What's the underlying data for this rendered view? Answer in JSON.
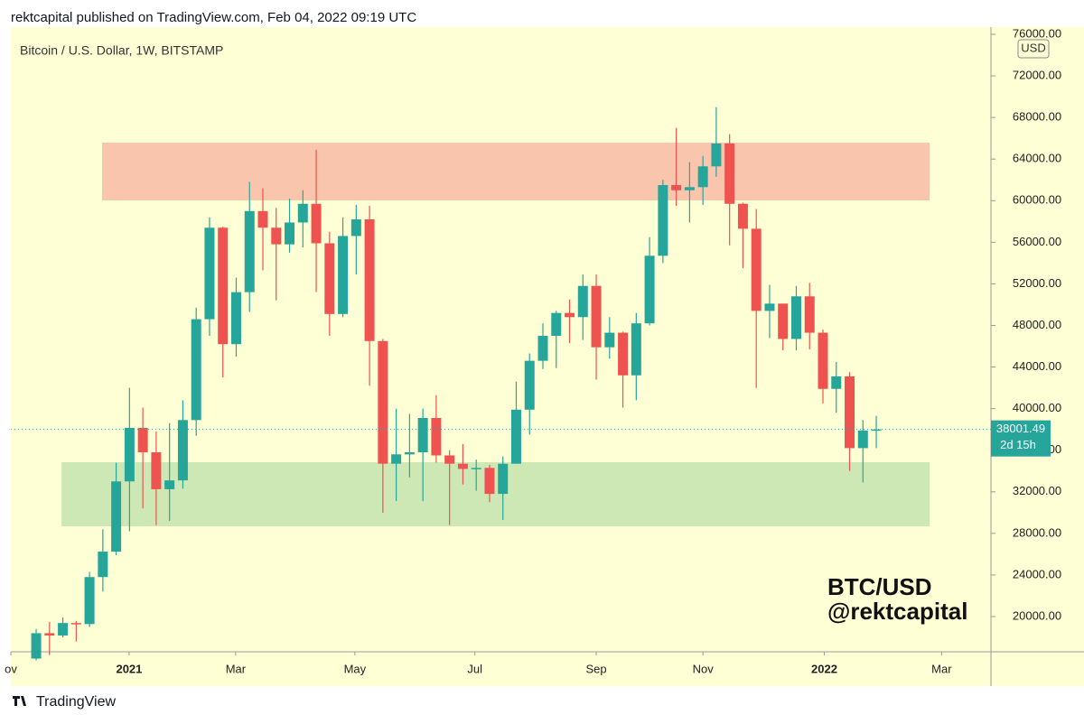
{
  "header": "rektcapital published on TradingView.com, Feb 04, 2022 09:19 UTC",
  "footer": "TradingView",
  "chart_data": {
    "type": "candlestick",
    "title": "Bitcoin / U.S. Dollar, 1W, BITSTAMP",
    "currency": "USD",
    "annotations": [
      "BTC/USD",
      "@rektcapital"
    ],
    "up_color": "#26a69a",
    "down_color": "#ef5350",
    "open": [
      15960,
      18400,
      18180,
      19380,
      19280,
      23800,
      26250,
      33000,
      38150,
      35800,
      32250,
      33100,
      38900,
      48600,
      57400,
      46200,
      51200,
      59000,
      57400,
      55800,
      57900,
      59700,
      55900,
      49100,
      56600,
      58200,
      46500,
      34700,
      35600,
      35800,
      39100,
      35500,
      34700,
      34200,
      34300,
      31800,
      34700,
      39900,
      44600,
      47000,
      49200,
      48800,
      51800,
      45900,
      47300,
      43200,
      48200,
      54700,
      61500,
      61000,
      61300,
      63300,
      65500,
      59700,
      57300,
      49400,
      50100,
      46700,
      50800,
      47300,
      41900,
      43100,
      36200,
      37900
    ],
    "high": [
      18800,
      19480,
      19920,
      19580,
      24300,
      28400,
      34800,
      42000,
      40100,
      37800,
      38600,
      40800,
      49700,
      58400,
      57500,
      52600,
      61800,
      61200,
      59300,
      60200,
      61000,
      64900,
      57000,
      58400,
      59600,
      59500,
      46700,
      40000,
      39500,
      40000,
      41300,
      36000,
      36600,
      35100,
      34600,
      35400,
      42600,
      45300,
      48200,
      49400,
      50500,
      52900,
      52900,
      48800,
      47400,
      49200,
      56500,
      62000,
      67000,
      63700,
      64300,
      69000,
      66400,
      59800,
      59200,
      51900,
      50100,
      51800,
      52100,
      47600,
      44500,
      43500,
      38900,
      39300
    ],
    "low": [
      15790,
      16300,
      18000,
      17600,
      19000,
      22400,
      25900,
      28200,
      30400,
      28800,
      29200,
      32300,
      37400,
      47000,
      43000,
      45000,
      49300,
      53300,
      50400,
      55000,
      55500,
      51200,
      47000,
      48800,
      52900,
      42200,
      30000,
      31100,
      33400,
      31100,
      34800,
      28800,
      32700,
      32100,
      31000,
      29300,
      34700,
      37500,
      43800,
      43900,
      46300,
      46600,
      42800,
      44800,
      40100,
      40800,
      48000,
      54000,
      59500,
      57900,
      59600,
      62300,
      55700,
      53500,
      42000,
      46800,
      45600,
      45600,
      45700,
      40500,
      39600,
      34000,
      32900,
      36200
    ],
    "close": [
      18400,
      18180,
      19380,
      19280,
      23800,
      26250,
      33000,
      38150,
      35800,
      32250,
      33100,
      38900,
      48600,
      57400,
      46200,
      51200,
      59000,
      57400,
      55800,
      57900,
      59700,
      55900,
      49100,
      56600,
      58200,
      46500,
      34700,
      35600,
      35800,
      39100,
      35500,
      34700,
      34200,
      34300,
      31800,
      34700,
      39900,
      44600,
      47000,
      49200,
      48800,
      51800,
      45900,
      47300,
      43200,
      48200,
      54700,
      61500,
      61000,
      61300,
      63300,
      65500,
      59700,
      57300,
      49400,
      50100,
      46700,
      50800,
      47300,
      41900,
      43100,
      36200,
      37900,
      38001.49
    ],
    "last_price": {
      "value": 38001.49,
      "label": "38001.49"
    },
    "countdown": "2d 15h",
    "zones": [
      {
        "color": "#f9c5ad",
        "ylim": [
          60025,
          65580
        ],
        "xlim": [
          4.94,
          67.0
        ]
      },
      {
        "color": "#cde8b5",
        "ylim": [
          28682,
          34846
        ],
        "xlim": [
          1.9,
          67.0
        ]
      }
    ],
    "xlim": [
      -1.9,
      71.6
    ],
    "xticks": [
      {
        "value": -1.9,
        "label": "ov"
      },
      {
        "value": 6.97,
        "label": "2021"
      },
      {
        "value": 14.96,
        "label": "Mar"
      },
      {
        "value": 23.9,
        "label": "May"
      },
      {
        "value": 32.9,
        "label": "Jul"
      },
      {
        "value": 42.0,
        "label": "Sep"
      },
      {
        "value": 50.0,
        "label": "Nov"
      },
      {
        "value": 59.1,
        "label": "2022"
      },
      {
        "value": 67.9,
        "label": "Mar"
      }
    ],
    "ylim": [
      16614,
      76694
    ],
    "yticks": [
      {
        "value": 20000,
        "label": "20000.00"
      },
      {
        "value": 24000,
        "label": "24000.00"
      },
      {
        "value": 28000,
        "label": "28000.00"
      },
      {
        "value": 32000,
        "label": "32000.00"
      },
      {
        "value": 36000,
        "label": "36000.00"
      },
      {
        "value": 40000,
        "label": "40000.00"
      },
      {
        "value": 44000,
        "label": "44000.00"
      },
      {
        "value": 48000,
        "label": "48000.00"
      },
      {
        "value": 52000,
        "label": "52000.00"
      },
      {
        "value": 56000,
        "label": "56000.00"
      },
      {
        "value": 60000,
        "label": "60000.00"
      },
      {
        "value": 64000,
        "label": "64000.00"
      },
      {
        "value": 68000,
        "label": "68000.00"
      },
      {
        "value": 72000,
        "label": "72000.00"
      },
      {
        "value": 76000,
        "label": "76000.00"
      }
    ]
  }
}
